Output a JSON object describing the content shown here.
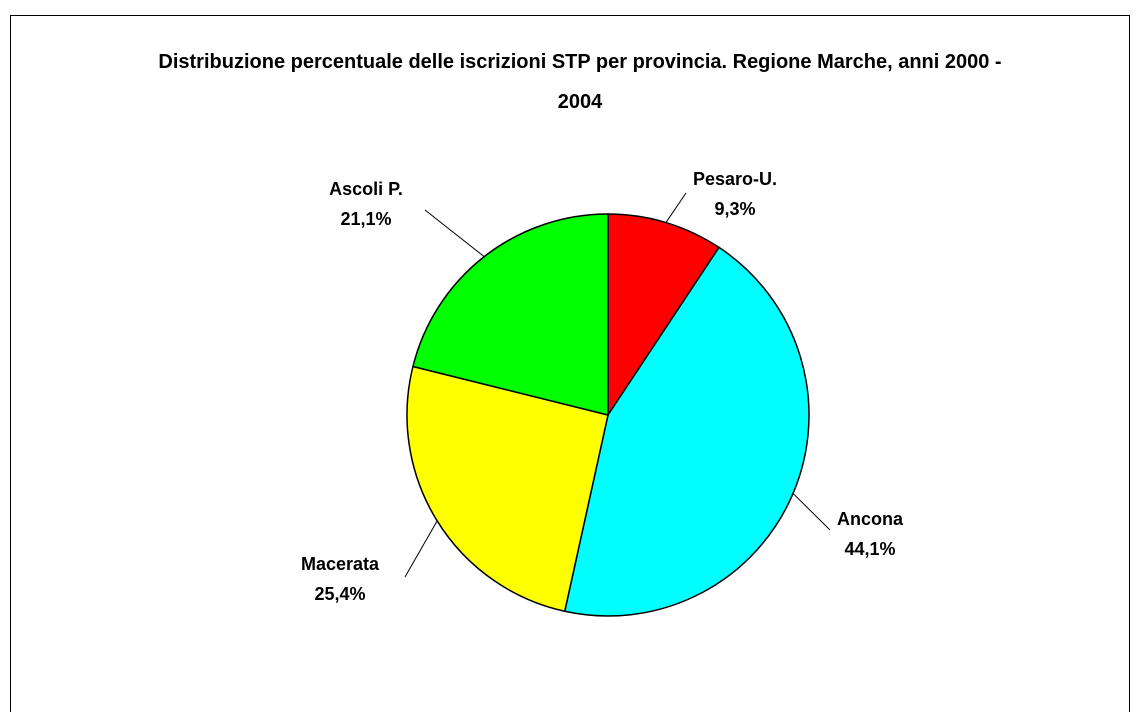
{
  "chart_data": {
    "type": "pie",
    "title": "Distribuzione percentuale delle iscrizioni STP per provincia. Regione Marche, anni 2000 - 2004",
    "categories": [
      "Pesaro-U.",
      "Ancona",
      "Macerata",
      "Ascoli P."
    ],
    "values": [
      9.3,
      44.1,
      25.4,
      21.1
    ],
    "value_labels": [
      "9,3%",
      "44,1%",
      "25,4%",
      "21,1%"
    ],
    "colors": [
      "#ff0000",
      "#00ffff",
      "#ffff00",
      "#00ff00"
    ]
  }
}
